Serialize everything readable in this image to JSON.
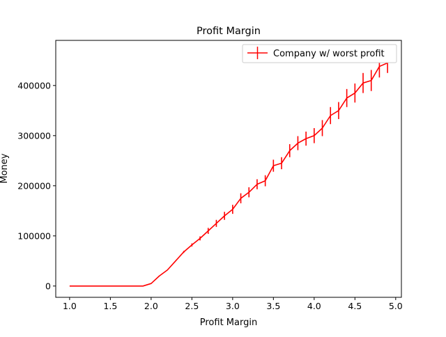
{
  "chart_data": {
    "type": "line",
    "title": "Profit Margin",
    "xlabel": "Profit Margin",
    "ylabel": "Money",
    "xlim": [
      0.83,
      5.07
    ],
    "ylim": [
      -22500,
      490000
    ],
    "xticks": [
      1.0,
      1.5,
      2.0,
      2.5,
      3.0,
      3.5,
      4.0,
      4.5,
      5.0
    ],
    "xtick_labels": [
      "1.0",
      "1.5",
      "2.0",
      "2.5",
      "3.0",
      "3.5",
      "4.0",
      "4.5",
      "5.0"
    ],
    "yticks": [
      0,
      100000,
      200000,
      300000,
      400000
    ],
    "ytick_labels": [
      "0",
      "100000",
      "200000",
      "300000",
      "400000"
    ],
    "grid": false,
    "legend_position": "upper right",
    "series": [
      {
        "name": "Company w/ worst profit",
        "color": "#ff0000",
        "x": [
          1.0,
          1.1,
          1.2,
          1.3,
          1.4,
          1.5,
          1.6,
          1.7,
          1.8,
          1.9,
          2.0,
          2.1,
          2.2,
          2.3,
          2.4,
          2.5,
          2.6,
          2.7,
          2.8,
          2.9,
          3.0,
          3.1,
          3.2,
          3.3,
          3.4,
          3.5,
          3.6,
          3.7,
          3.8,
          3.9,
          4.0,
          4.1,
          4.2,
          4.3,
          4.4,
          4.5,
          4.6,
          4.7,
          4.8,
          4.9
        ],
        "y": [
          0,
          0,
          0,
          0,
          0,
          0,
          0,
          0,
          0,
          0,
          5000,
          20000,
          32000,
          50000,
          68000,
          82000,
          95000,
          110000,
          125000,
          140000,
          153000,
          175000,
          187000,
          203000,
          210000,
          240000,
          245000,
          270000,
          285000,
          294000,
          300000,
          315000,
          340000,
          350000,
          375000,
          385000,
          405000,
          410000,
          438000,
          445000
        ],
        "yerr": [
          0,
          0,
          0,
          0,
          0,
          0,
          0,
          0,
          0,
          0,
          0,
          0,
          0,
          0,
          2000,
          3000,
          4000,
          6000,
          7000,
          8000,
          9000,
          10000,
          10000,
          10000,
          11000,
          12000,
          12000,
          13000,
          14000,
          14000,
          15000,
          16000,
          17000,
          17000,
          18000,
          19000,
          20000,
          21000,
          22000,
          20000
        ]
      }
    ]
  }
}
